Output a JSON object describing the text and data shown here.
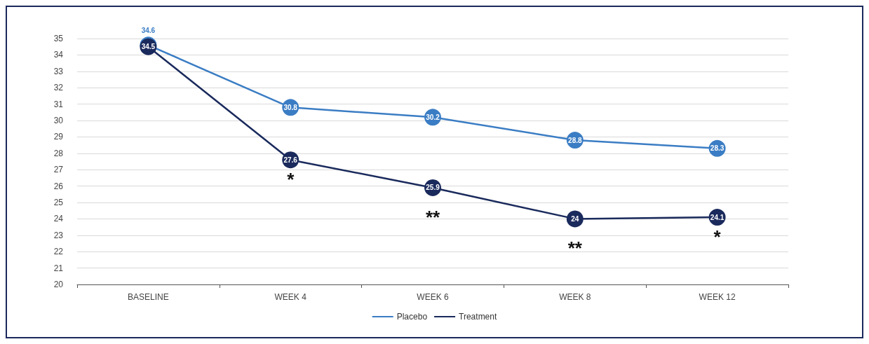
{
  "chart_data": {
    "type": "line",
    "categories": [
      "BASELINE",
      "WEEK 4",
      "WEEK 6",
      "WEEK 8",
      "WEEK 12"
    ],
    "series": [
      {
        "name": "Placebo",
        "color": "#3b7dc4",
        "values": [
          34.6,
          30.8,
          30.2,
          28.8,
          28.3
        ]
      },
      {
        "name": "Treatment",
        "color": "#1a2a5c",
        "values": [
          34.5,
          27.6,
          25.9,
          24,
          24.1
        ]
      }
    ],
    "ylim": [
      20,
      35
    ],
    "yticks": [
      20,
      21,
      22,
      23,
      24,
      25,
      26,
      27,
      28,
      29,
      30,
      31,
      32,
      33,
      34,
      35
    ],
    "grid": "y",
    "legend": "bottom",
    "marker": "circle",
    "line_style": "solid",
    "data_labels": true,
    "annotations": [
      {
        "text": "*",
        "x": "WEEK 4",
        "y": 27.6
      },
      {
        "text": "**",
        "x": "WEEK 6",
        "y": 25.9
      },
      {
        "text": "**",
        "x": "WEEK 8",
        "y": 24
      },
      {
        "text": "*",
        "x": "WEEK 12",
        "y": 24.1
      }
    ]
  }
}
